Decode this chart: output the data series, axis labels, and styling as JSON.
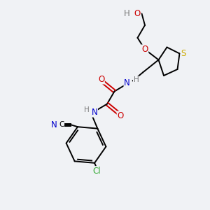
{
  "bg_color": "#f0f2f5",
  "atom_colors": {
    "C": "#000000",
    "N": "#0000cc",
    "O": "#cc0000",
    "S": "#ccaa00",
    "Cl": "#33aa33",
    "H": "#777777"
  }
}
